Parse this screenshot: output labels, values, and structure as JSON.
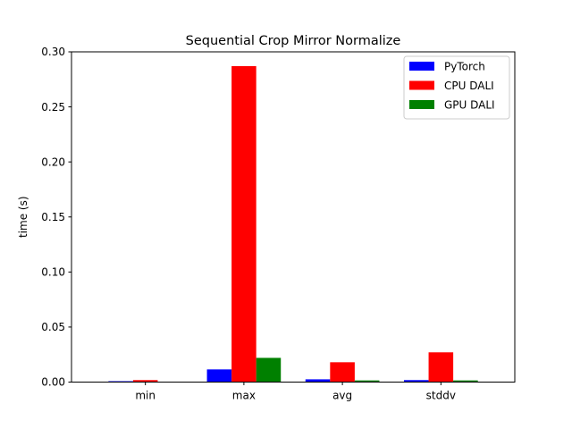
{
  "chart_data": {
    "type": "bar",
    "title": "Sequential Crop Mirror Normalize",
    "xlabel": "",
    "ylabel": "time (s)",
    "categories": [
      "min",
      "max",
      "avg",
      "stddv"
    ],
    "ylim": [
      0,
      0.3
    ],
    "yticks": [
      0.0,
      0.05,
      0.1,
      0.15,
      0.2,
      0.25,
      0.3
    ],
    "ytick_labels": [
      "0.00",
      "0.05",
      "0.10",
      "0.15",
      "0.20",
      "0.25",
      "0.30"
    ],
    "grid": false,
    "legend_position": "top-right",
    "series": [
      {
        "name": "PyTorch",
        "color": "#0000ff",
        "values": [
          0.0008,
          0.0115,
          0.0025,
          0.0018
        ]
      },
      {
        "name": "CPU DALI",
        "color": "#ff0000",
        "values": [
          0.0018,
          0.287,
          0.018,
          0.027
        ]
      },
      {
        "name": "GPU DALI",
        "color": "#008000",
        "values": [
          0.0002,
          0.022,
          0.0015,
          0.0015
        ]
      }
    ]
  }
}
